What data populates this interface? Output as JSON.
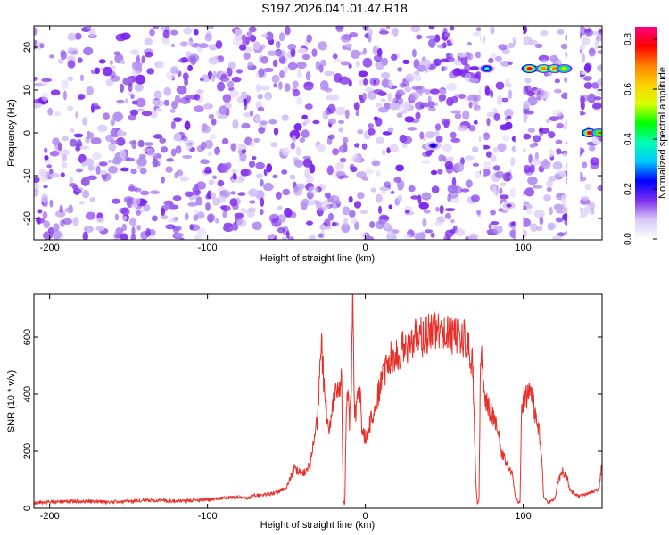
{
  "title": "S197.2026.041.01.47.R18",
  "colors": {
    "snr_line": "#e8302a",
    "point_purple": "#8a3fe8",
    "point_light": "#d8c8f6"
  },
  "chart_data": [
    {
      "type": "heatmap",
      "xlabel": "Height of straight line (km)",
      "ylabel": "Frequency (Hz)",
      "xlim": [
        -210,
        150
      ],
      "ylim": [
        -25,
        25
      ],
      "x_ticks": [
        -200,
        -100,
        0,
        100
      ],
      "y_ticks": [
        -20,
        -10,
        0,
        10,
        20
      ],
      "colorbar": {
        "label": "Normalized spectral amplitude",
        "range": [
          0,
          0.85
        ],
        "ticks": [
          0,
          0.2,
          0.4,
          0.6,
          0.8
        ],
        "colormap": [
          "#ffffff",
          "#d8c8f6",
          "#7b2ff0",
          "#0000ff",
          "#00c8ff",
          "#00ffb0",
          "#00ff00",
          "#d8ff00",
          "#ffd000",
          "#ff8000",
          "#ff0000",
          "#ff0080"
        ]
      },
      "gaps_x": [
        [
          73,
          75
        ],
        [
          95,
          100
        ],
        [
          128,
          136
        ]
      ],
      "hotspots": [
        {
          "x": 77,
          "f": 15,
          "amp": 0.35
        },
        {
          "x": 104,
          "f": 15,
          "amp": 0.8
        },
        {
          "x": 113,
          "f": 15,
          "amp": 0.7
        },
        {
          "x": 120,
          "f": 15,
          "amp": 0.7
        },
        {
          "x": 126,
          "f": 15,
          "amp": 0.6
        },
        {
          "x": 142,
          "f": 0,
          "amp": 0.8
        },
        {
          "x": 148,
          "f": 0,
          "amp": 0.6
        },
        {
          "x": 43,
          "f": -3,
          "amp": 0.2
        },
        {
          "x": 91,
          "f": -17,
          "amp": 0.15
        }
      ]
    },
    {
      "type": "line",
      "xlabel": "Height of straight line (km)",
      "ylabel": "SNR (10 * v/v)",
      "xlim": [
        -210,
        150
      ],
      "ylim": [
        0,
        750
      ],
      "x_ticks": [
        -200,
        -100,
        0,
        100
      ],
      "y_ticks": [
        0,
        200,
        400,
        600
      ],
      "series": [
        {
          "name": "SNR",
          "x": [
            -210,
            -200,
            -180,
            -160,
            -140,
            -120,
            -100,
            -90,
            -80,
            -75,
            -70,
            -60,
            -50,
            -45,
            -40,
            -35,
            -30,
            -28,
            -27,
            -26,
            -25,
            -23,
            -20,
            -15,
            -14,
            -13,
            -12,
            -11,
            -10,
            -9,
            -8,
            -7,
            -6,
            -5,
            -4,
            -3,
            -2,
            0,
            5,
            10,
            15,
            20,
            25,
            30,
            35,
            40,
            45,
            50,
            55,
            60,
            65,
            68,
            70,
            70.5,
            71,
            72,
            73,
            74,
            74.5,
            75,
            78,
            80,
            82,
            84,
            86,
            88,
            90,
            93,
            95,
            96,
            97,
            98,
            99,
            100,
            105,
            110,
            112,
            113,
            114,
            116,
            118,
            120,
            122,
            125,
            128,
            130,
            135,
            140,
            145,
            148,
            150
          ],
          "values": [
            20,
            22,
            25,
            22,
            28,
            25,
            30,
            35,
            40,
            35,
            45,
            50,
            70,
            140,
            120,
            150,
            320,
            600,
            500,
            420,
            350,
            280,
            380,
            440,
            20,
            15,
            390,
            400,
            300,
            370,
            740,
            360,
            330,
            380,
            410,
            390,
            260,
            250,
            330,
            450,
            520,
            540,
            570,
            590,
            600,
            610,
            620,
            630,
            610,
            600,
            590,
            500,
            90,
            40,
            20,
            30,
            550,
            500,
            480,
            420,
            350,
            330,
            300,
            280,
            200,
            180,
            150,
            120,
            40,
            30,
            20,
            25,
            350,
            380,
            400,
            280,
            150,
            40,
            30,
            20,
            25,
            30,
            90,
            130,
            100,
            60,
            40,
            50,
            60,
            70,
            160
          ]
        }
      ]
    }
  ]
}
